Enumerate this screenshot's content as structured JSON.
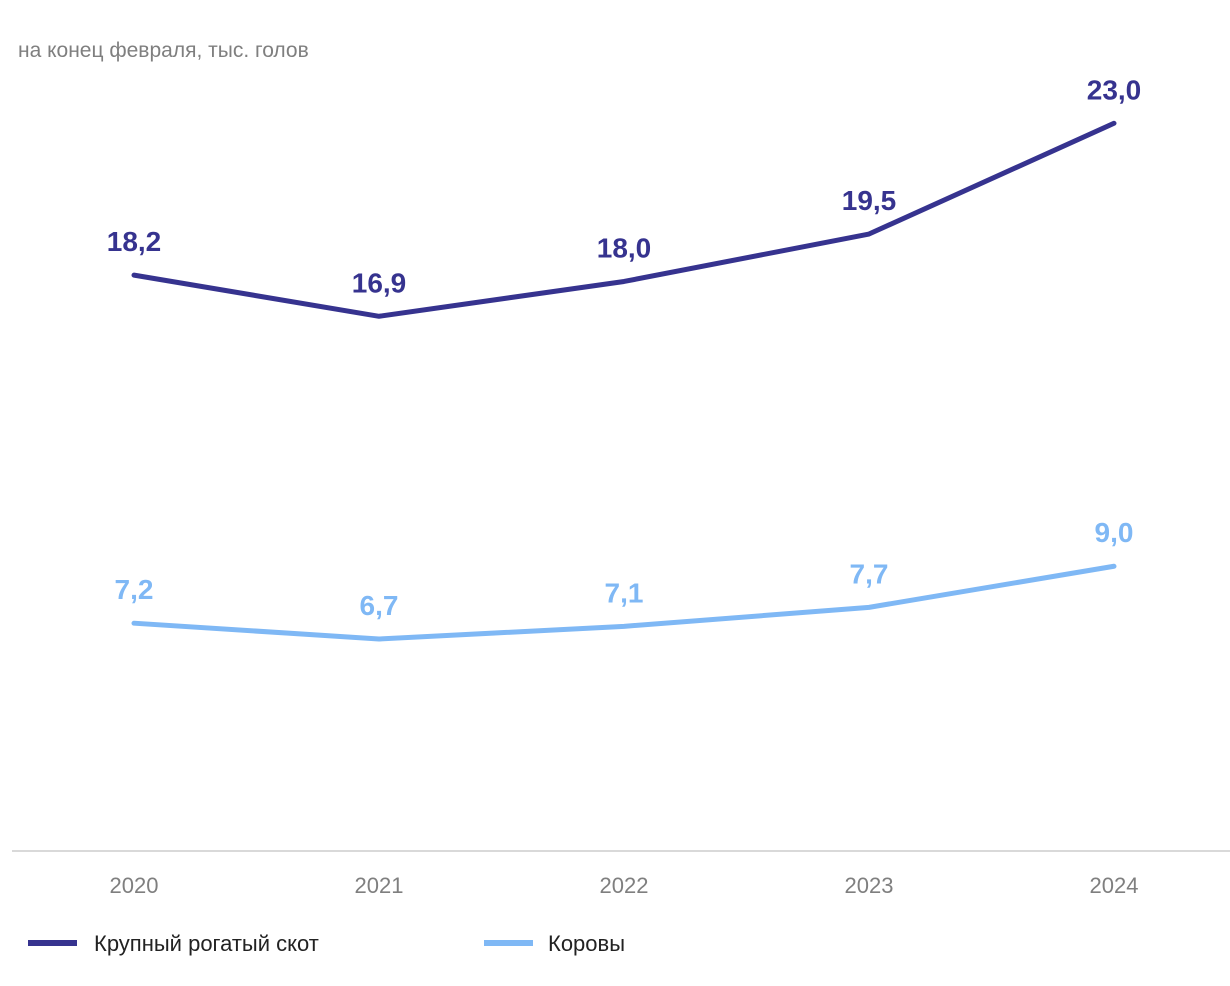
{
  "chart_data": {
    "type": "line",
    "subtitle": "на конец февраля, тыс. голов",
    "categories": [
      "2020",
      "2021",
      "2022",
      "2023",
      "2024"
    ],
    "series": [
      {
        "name": "Крупный рогатый скот",
        "values": [
          18.2,
          16.9,
          18.0,
          19.5,
          23.0
        ],
        "labels": [
          "18,2",
          "16,9",
          "18,0",
          "19,5",
          "23,0"
        ],
        "color": "#36338f"
      },
      {
        "name": "Коровы",
        "values": [
          7.2,
          6.7,
          7.1,
          7.7,
          9.0
        ],
        "labels": [
          "7,2",
          "6,7",
          "7,1",
          "7,7",
          "9,0"
        ],
        "color": "#7fb8f5"
      }
    ],
    "ylim": [
      0,
      25
    ],
    "grid": false,
    "legend_position": "bottom-left",
    "axis_color": "#d9d9d9"
  }
}
